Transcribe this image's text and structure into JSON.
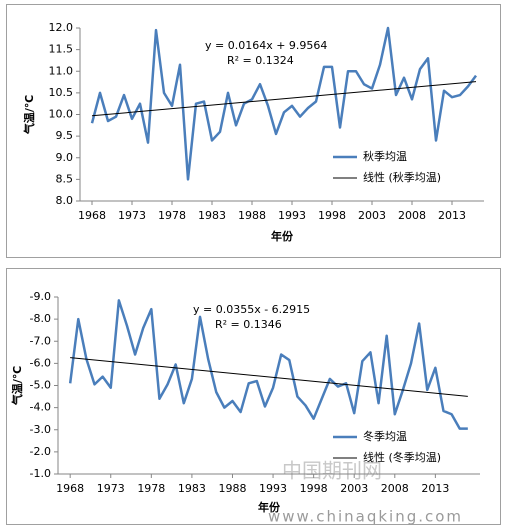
{
  "chart_data": [
    {
      "type": "line",
      "ylabel": "气温/℃",
      "xlabel": "年份",
      "equation": "y = 0.0164x + 9.9564",
      "r2": "R² = 0.1324",
      "x": [
        1968,
        1969,
        1970,
        1971,
        1972,
        1973,
        1974,
        1975,
        1976,
        1977,
        1978,
        1979,
        1980,
        1981,
        1982,
        1983,
        1984,
        1985,
        1986,
        1987,
        1988,
        1989,
        1990,
        1991,
        1992,
        1993,
        1994,
        1995,
        1996,
        1997,
        1998,
        1999,
        2000,
        2001,
        2002,
        2003,
        2004,
        2005,
        2006,
        2007,
        2008,
        2009,
        2010,
        2011,
        2012,
        2013,
        2014,
        2015,
        2016
      ],
      "series": [
        {
          "name": "秋季均温",
          "color": "#4a7ebb",
          "values": [
            9.8,
            10.5,
            9.85,
            9.95,
            10.45,
            9.9,
            10.25,
            9.35,
            11.95,
            10.5,
            10.2,
            11.15,
            8.5,
            10.25,
            10.3,
            9.4,
            9.6,
            10.5,
            9.75,
            10.25,
            10.35,
            10.7,
            10.2,
            9.55,
            10.05,
            10.2,
            9.95,
            10.15,
            10.3,
            11.1,
            11.1,
            9.7,
            11.0,
            11.0,
            10.7,
            10.6,
            11.15,
            12.0,
            10.45,
            10.85,
            10.35,
            11.05,
            11.3,
            9.4,
            10.55,
            10.4,
            10.45,
            10.65,
            10.9
          ]
        }
      ],
      "trend": {
        "name": "线性 (秋季均温)",
        "color": "#000000",
        "x": [
          1968,
          2016
        ],
        "values": [
          9.97,
          10.76
        ]
      },
      "xlim": [
        1966.5,
        2017
      ],
      "xticks": [
        1968,
        1973,
        1978,
        1983,
        1988,
        1993,
        1998,
        2003,
        2008,
        2013
      ],
      "ylim": [
        8,
        12
      ],
      "y_reversed": false,
      "yticks": [
        {
          "value": 8,
          "label": "8.0"
        },
        {
          "value": 8.5,
          "label": "8.5"
        },
        {
          "value": 9,
          "label": "9.0"
        },
        {
          "value": 9.5,
          "label": "9.5"
        },
        {
          "value": 10,
          "label": "10.0"
        },
        {
          "value": 10.5,
          "label": "10.5"
        },
        {
          "value": 11,
          "label": "11.0"
        },
        {
          "value": 11.5,
          "label": "11.5"
        },
        {
          "value": 12,
          "label": "12.0"
        }
      ],
      "legend": "right"
    },
    {
      "type": "line",
      "ylabel": "气温/℃",
      "xlabel": "年份",
      "equation": "y = 0.0355x - 6.2915",
      "r2": "R² = 0.1346",
      "x": [
        1968,
        1969,
        1970,
        1971,
        1972,
        1973,
        1974,
        1975,
        1976,
        1977,
        1978,
        1979,
        1980,
        1981,
        1982,
        1983,
        1984,
        1985,
        1986,
        1987,
        1988,
        1989,
        1990,
        1991,
        1992,
        1993,
        1994,
        1995,
        1996,
        1997,
        1998,
        1999,
        2000,
        2001,
        2002,
        2003,
        2004,
        2005,
        2006,
        2007,
        2008,
        2009,
        2010,
        2011,
        2012,
        2013,
        2014,
        2015,
        2016,
        2017
      ],
      "series": [
        {
          "name": "冬季均温",
          "color": "#4a7ebb",
          "values": [
            -5.1,
            -8.0,
            -6.2,
            -5.05,
            -5.4,
            -4.9,
            -8.85,
            -7.7,
            -6.4,
            -7.6,
            -8.45,
            -4.4,
            -5.05,
            -5.95,
            -4.2,
            -5.3,
            -8.1,
            -6.2,
            -4.7,
            -4.0,
            -4.3,
            -3.8,
            -5.1,
            -5.2,
            -4.05,
            -4.9,
            -6.4,
            -6.15,
            -4.5,
            -4.1,
            -3.5,
            -4.4,
            -5.3,
            -4.95,
            -5.1,
            -3.75,
            -6.1,
            -6.5,
            -4.2,
            -7.25,
            -3.7,
            -4.8,
            -6.0,
            -7.8,
            -4.8,
            -5.8,
            -3.85,
            -3.7,
            -3.05,
            -3.05
          ]
        }
      ],
      "trend": {
        "name": "线性 (冬季均温)",
        "color": "#000000",
        "x": [
          1968,
          2017
        ],
        "values": [
          -6.26,
          -4.51
        ]
      },
      "xlim": [
        1966.5,
        2018.5
      ],
      "xticks": [
        1968,
        1973,
        1978,
        1983,
        1988,
        1993,
        1998,
        2003,
        2008,
        2013
      ],
      "ylim": [
        -9,
        -1
      ],
      "y_reversed": true,
      "yticks": [
        {
          "value": -9,
          "label": "-9.0"
        },
        {
          "value": -8,
          "label": "-8.0"
        },
        {
          "value": -7,
          "label": "-7.0"
        },
        {
          "value": -6,
          "label": "-6.0"
        },
        {
          "value": -5,
          "label": "-5.0"
        },
        {
          "value": -4,
          "label": "-4.0"
        },
        {
          "value": -3,
          "label": "-3.0"
        },
        {
          "value": -2,
          "label": "-2.0"
        },
        {
          "value": -1,
          "label": "-1.0"
        }
      ],
      "legend": "right"
    }
  ],
  "watermark": {
    "name": "中国期刊网",
    "url": "www.chinaqking.com"
  }
}
